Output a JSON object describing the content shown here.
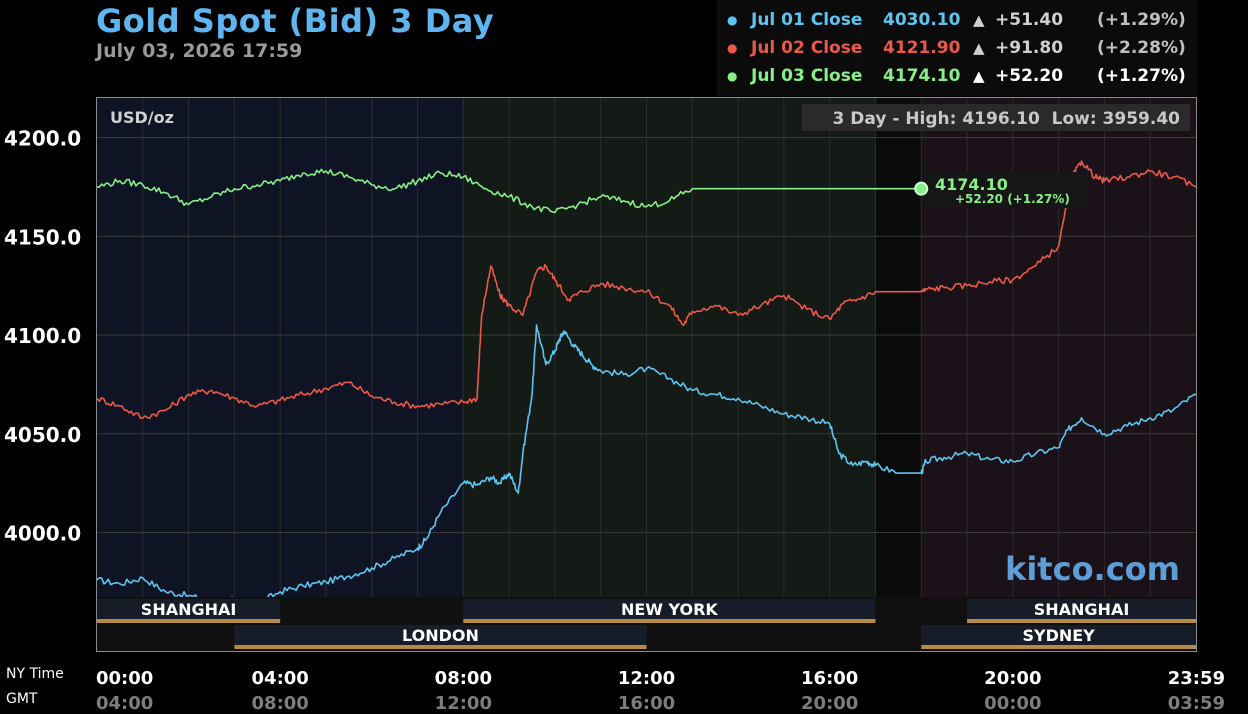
{
  "header": {
    "title": "Gold Spot (Bid) 3 Day",
    "datetime": "July 03, 2026 17:59"
  },
  "legend": [
    {
      "label": "Jul 01 Close",
      "close": "4030.10",
      "arrow": "▲",
      "change": "+51.40",
      "pct": "(+1.29%)",
      "color": "#5ec4f0"
    },
    {
      "label": "Jul 02 Close",
      "close": "4121.90",
      "arrow": "▲",
      "change": "+91.80",
      "pct": "(+2.28%)",
      "color": "#ec5848"
    },
    {
      "label": "Jul 03 Close",
      "close": "4174.10",
      "arrow": "▲",
      "change": "+52.20",
      "pct": "(+1.27%)",
      "color": "#88ee88"
    }
  ],
  "units": "USD/oz",
  "stats": {
    "text": "3 Day - High: 4196.10  Low: 3959.40"
  },
  "watermark": "kitco.com",
  "axis_labels": {
    "ny": "NY Time",
    "gmt": "GMT"
  },
  "current": {
    "price": "4174.10",
    "change": "+52.20 (+1.27%)"
  },
  "sessions": [
    {
      "name": "SHANGHAI",
      "label": "SHANGHAI",
      "start": 0,
      "end": 4,
      "row": 0
    },
    {
      "name": "NEW YORK",
      "label": "NEW YORK",
      "start": 8,
      "end": 17,
      "row": 0
    },
    {
      "name": "SHANGHAI 2",
      "label": "SHANGHAI",
      "start": 19,
      "end": 24,
      "row": 0
    },
    {
      "name": "LONDON",
      "label": "LONDON",
      "start": 3,
      "end": 12,
      "row": 1
    },
    {
      "name": "SYDNEY",
      "label": "SYDNEY",
      "start": 18,
      "end": 24,
      "row": 1
    }
  ],
  "chart_data": {
    "type": "line",
    "title": "Gold Spot (Bid) 3 Day",
    "ylabel": "USD/oz",
    "ylim": [
      3940,
      4220
    ],
    "xlim": [
      0,
      24
    ],
    "yticks": [
      {
        "value": 4000,
        "label": "4000.0"
      },
      {
        "value": 4050,
        "label": "4050.0"
      },
      {
        "value": 4100,
        "label": "4100.0"
      },
      {
        "value": 4150,
        "label": "4150.0"
      },
      {
        "value": 4200,
        "label": "4200.0"
      }
    ],
    "xticks": [
      {
        "value": 0,
        "ny": "00:00",
        "gmt": "04:00"
      },
      {
        "value": 4,
        "ny": "04:00",
        "gmt": "08:00"
      },
      {
        "value": 8,
        "ny": "08:00",
        "gmt": "12:00"
      },
      {
        "value": 12,
        "ny": "12:00",
        "gmt": "16:00"
      },
      {
        "value": 16,
        "ny": "16:00",
        "gmt": "20:00"
      },
      {
        "value": 20,
        "ny": "20:00",
        "gmt": "00:00"
      },
      {
        "value": 23.98,
        "ny": "23:59",
        "gmt": "03:59"
      }
    ],
    "grid": true,
    "series": [
      {
        "name": "Jul 01",
        "color": "#5ec4f0",
        "x": [
          0,
          0.5,
          1,
          1.5,
          2,
          2.5,
          3,
          3.5,
          4,
          4.5,
          5,
          5.5,
          6,
          6.5,
          7,
          7.2,
          7.5,
          8,
          8.3,
          8.6,
          8.8,
          9,
          9.2,
          9.3,
          9.5,
          9.6,
          9.8,
          10,
          10.1,
          10.2,
          10.4,
          10.6,
          10.8,
          11,
          11.5,
          12,
          12.5,
          13,
          13.5,
          14,
          14.5,
          15,
          15.5,
          16,
          16.2,
          16.5,
          16.8,
          17,
          17.5,
          18,
          18.1,
          18.5,
          19,
          19.5,
          20,
          20.5,
          21,
          21.2,
          21.5,
          22,
          22.5,
          23,
          23.5,
          24
        ],
        "y": [
          3976,
          3974,
          3977,
          3970,
          3968,
          3965,
          3966,
          3964,
          3970,
          3973,
          3975,
          3978,
          3982,
          3987,
          3992,
          3997,
          4010,
          4025,
          4024,
          4028,
          4025,
          4030,
          4020,
          4040,
          4070,
          4105,
          4085,
          4092,
          4098,
          4102,
          4095,
          4090,
          4085,
          4082,
          4080,
          4083,
          4078,
          4072,
          4070,
          4068,
          4064,
          4060,
          4058,
          4055,
          4040,
          4034,
          4036,
          4034,
          4030.1,
          4030.1,
          4036,
          4038,
          4040,
          4037,
          4036,
          4040,
          4043,
          4052,
          4058,
          4050,
          4054,
          4058,
          4062,
          4070
        ]
      },
      {
        "name": "Jul 02",
        "color": "#ec5848",
        "x": [
          0,
          0.5,
          1,
          1.5,
          2,
          2.5,
          3,
          3.5,
          4,
          4.5,
          5,
          5.5,
          6,
          6.5,
          7,
          7.5,
          8,
          8.3,
          8.4,
          8.6,
          8.8,
          9,
          9.3,
          9.6,
          9.8,
          10,
          10.3,
          10.6,
          11,
          11.5,
          12,
          12.5,
          12.8,
          13,
          13.5,
          14,
          14.5,
          15,
          15.5,
          16,
          16.3,
          16.6,
          17,
          17.5,
          18,
          18.1,
          18.5,
          19,
          19.5,
          20,
          20.5,
          21,
          21.3,
          21.5,
          21.8,
          22,
          22.5,
          23,
          23.5,
          24
        ],
        "y": [
          4068,
          4064,
          4058,
          4062,
          4070,
          4072,
          4068,
          4064,
          4067,
          4070,
          4073,
          4076,
          4069,
          4066,
          4064,
          4065,
          4066,
          4068,
          4110,
          4135,
          4120,
          4115,
          4110,
          4132,
          4135,
          4128,
          4118,
          4122,
          4126,
          4124,
          4122,
          4115,
          4105,
          4112,
          4115,
          4110,
          4115,
          4120,
          4113,
          4108,
          4116,
          4118,
          4121.9,
          4121.9,
          4121.9,
          4123,
          4124,
          4125,
          4127,
          4128,
          4135,
          4145,
          4180,
          4188,
          4180,
          4178,
          4180,
          4183,
          4180,
          4175
        ]
      },
      {
        "name": "Jul 03",
        "color": "#88ee88",
        "x": [
          0,
          0.5,
          1,
          1.5,
          2,
          2.5,
          3,
          3.5,
          4,
          4.5,
          5,
          5.5,
          6,
          6.5,
          7,
          7.5,
          8,
          8.5,
          9,
          9.5,
          10,
          10.5,
          11,
          11.5,
          12,
          12.5,
          13,
          13.5,
          14,
          15,
          16,
          17,
          18
        ],
        "y": [
          4175,
          4178,
          4176,
          4172,
          4166,
          4170,
          4174,
          4176,
          4178,
          4182,
          4183,
          4180,
          4176,
          4174,
          4178,
          4182,
          4180,
          4174,
          4170,
          4165,
          4162,
          4166,
          4170,
          4168,
          4165,
          4168,
          4174.1,
          4174.1,
          4174.1,
          4174.1,
          4174.1,
          4174.1,
          4174.1
        ]
      }
    ]
  }
}
